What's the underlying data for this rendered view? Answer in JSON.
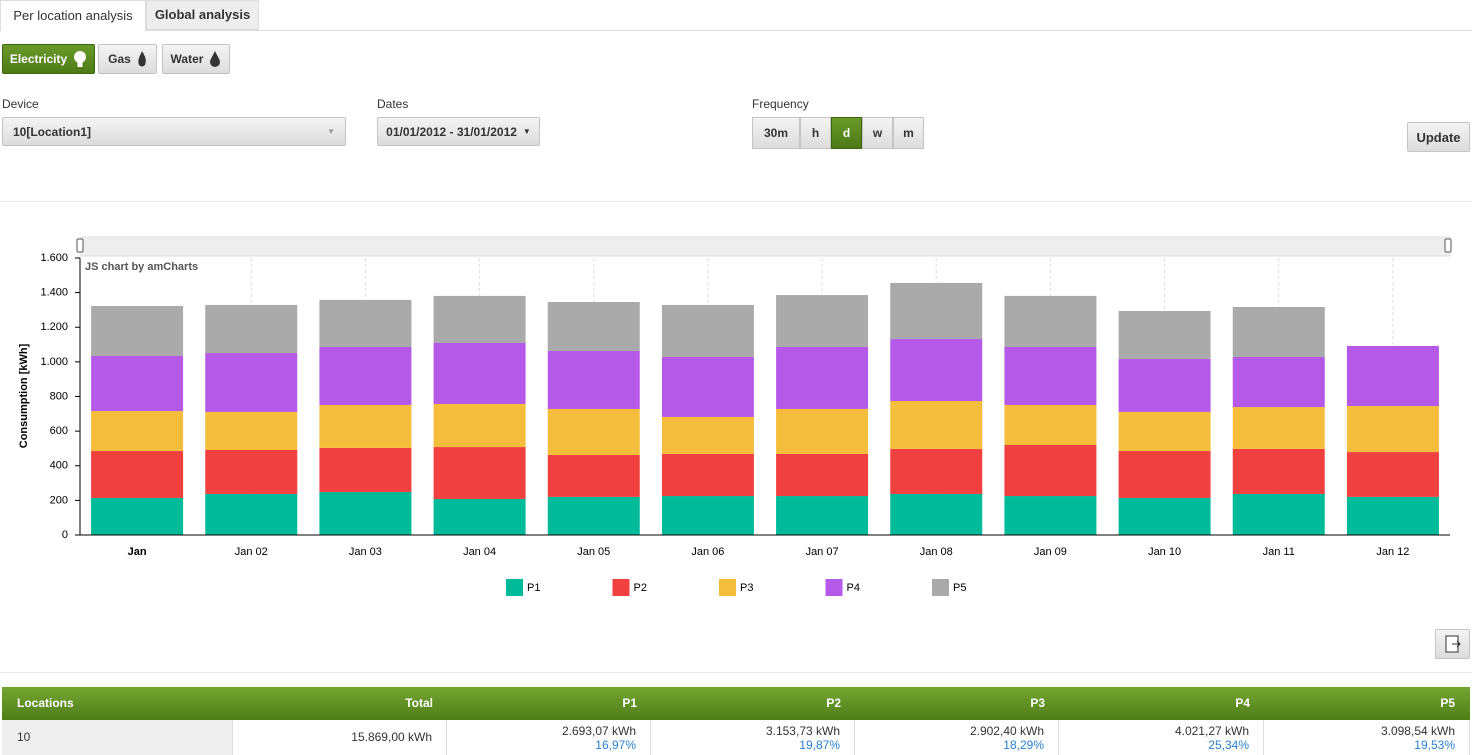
{
  "tabs": [
    "Per location analysis",
    "Global analysis"
  ],
  "energy_buttons": [
    "Electricity",
    "Gas",
    "Water"
  ],
  "form": {
    "device_label": "Device",
    "device_value": "10[Location1]",
    "dates_label": "Dates",
    "dates_value": "01/01/2012 - 31/01/2012",
    "frequency_label": "Frequency",
    "frequency_options": [
      "30m",
      "h",
      "d",
      "w",
      "m"
    ],
    "update": "Update"
  },
  "chart_data": {
    "type": "bar",
    "stacked": true,
    "credit": "JS chart by amCharts",
    "y_label": "Consumption [kWh]",
    "categories": [
      "Jan",
      "Jan 02",
      "Jan 03",
      "Jan 04",
      "Jan 05",
      "Jan 06",
      "Jan 07",
      "Jan 08",
      "Jan 09",
      "Jan 10",
      "Jan 11",
      "Jan 12"
    ],
    "series": [
      {
        "name": "P1",
        "color": "#00bb99",
        "values": [
          214,
          237,
          248,
          208,
          220,
          225,
          225,
          237,
          225,
          214,
          237,
          220
        ]
      },
      {
        "name": "P2",
        "color": "#f04040",
        "values": [
          271,
          254,
          255,
          300,
          242,
          243,
          243,
          260,
          295,
          271,
          260,
          259
        ]
      },
      {
        "name": "P3",
        "color": "#f5bd3c",
        "values": [
          231,
          220,
          248,
          249,
          266,
          214,
          260,
          277,
          231,
          226,
          242,
          266
        ]
      },
      {
        "name": "P4",
        "color": "#b55ae8",
        "values": [
          318,
          340,
          335,
          352,
          335,
          346,
          358,
          358,
          335,
          306,
          289,
          347
        ]
      },
      {
        "name": "P5",
        "color": "#aaaaaa",
        "values": [
          289,
          278,
          272,
          272,
          283,
          301,
          300,
          324,
          295,
          277,
          289,
          0
        ]
      }
    ],
    "ylim": [
      0,
      1600
    ],
    "yticks": [
      0,
      200,
      400,
      600,
      800,
      {
        "value": 1000,
        "label": "1.000"
      },
      {
        "value": 1200,
        "label": "1.200"
      },
      {
        "value": 1400,
        "label": "1.400"
      },
      {
        "value": 1600,
        "label": "1.600"
      }
    ]
  },
  "table": {
    "headers": [
      "Locations",
      "Total",
      "P1",
      "P2",
      "P3",
      "P4",
      "P5"
    ],
    "rows": [
      {
        "location": "10",
        "total": "15.869,00 kWh",
        "cells": [
          [
            "2.693,07 kWh",
            "16,97%"
          ],
          [
            "3.153,73 kWh",
            "19,87%"
          ],
          [
            "2.902,40 kWh",
            "18,29%"
          ],
          [
            "4.021,27 kWh",
            "25,34%"
          ],
          [
            "3.098,54 kWh",
            "19,53%"
          ]
        ]
      }
    ]
  }
}
